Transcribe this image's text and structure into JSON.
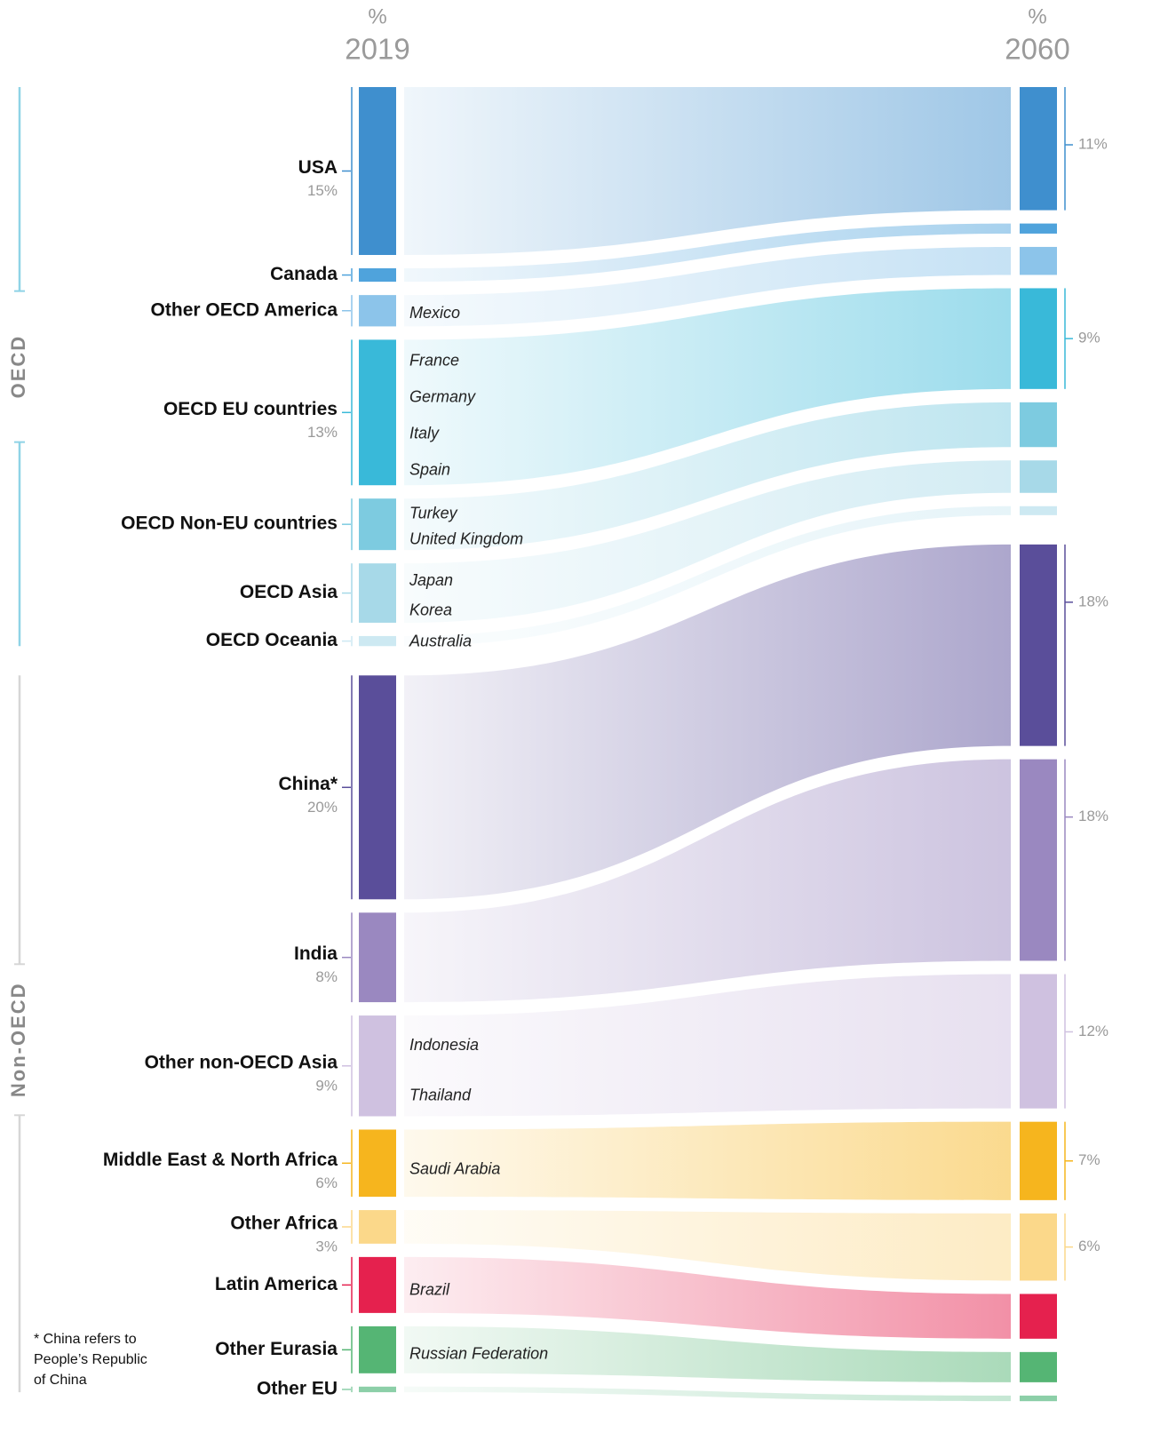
{
  "chart_data": {
    "type": "sankey",
    "left_header": {
      "unit": "%",
      "year": "2019"
    },
    "right_header": {
      "unit": "%",
      "year": "2060"
    },
    "groups": [
      {
        "name": "OECD",
        "color": "#8fd3e6",
        "regions": [
          {
            "name": "USA",
            "color": "#3f8fce",
            "value_2019": 15,
            "label_2019": "15%",
            "value_2060": 11,
            "label_2060": "11%",
            "countries": []
          },
          {
            "name": "Canada",
            "color": "#4fa3dc",
            "value_2019": 1.2,
            "value_2060": 0.9,
            "countries": []
          },
          {
            "name": "Other OECD America",
            "color": "#8cc4ea",
            "value_2019": 2.8,
            "value_2060": 2.5,
            "countries": [
              "Mexico"
            ]
          },
          {
            "name": "OECD EU countries",
            "color": "#39b9d9",
            "value_2019": 13,
            "label_2019": "13%",
            "value_2060": 9,
            "label_2060": "9%",
            "countries": [
              "France",
              "Germany",
              "Italy",
              "Spain"
            ]
          },
          {
            "name": "OECD Non-EU countries",
            "color": "#7dcbe0",
            "value_2019": 4.6,
            "value_2060": 4,
            "countries": [
              "Turkey",
              "United Kingdom"
            ]
          },
          {
            "name": "OECD Asia",
            "color": "#a7d9e8",
            "value_2019": 5.3,
            "value_2060": 2.9,
            "countries": [
              "Japan",
              "Korea"
            ]
          },
          {
            "name": "OECD Oceania",
            "color": "#cde9f2",
            "value_2019": 0.9,
            "value_2060": 0.8,
            "countries": [
              "Australia"
            ]
          }
        ]
      },
      {
        "name": "Non-OECD",
        "color": "#d6d6d6",
        "regions": [
          {
            "name": "China*",
            "color": "#5a4e9a",
            "value_2019": 20,
            "label_2019": "20%",
            "value_2060": 18,
            "label_2060": "18%",
            "countries": []
          },
          {
            "name": "India",
            "color": "#9a88c0",
            "value_2019": 8,
            "label_2019": "8%",
            "value_2060": 18,
            "label_2060": "18%",
            "countries": []
          },
          {
            "name": "Other non-OECD Asia",
            "color": "#cfc1e0",
            "value_2019": 9,
            "label_2019": "9%",
            "value_2060": 12,
            "label_2060": "12%",
            "countries": [
              "Indonesia",
              "Thailand"
            ]
          },
          {
            "name": "Middle East & North Africa",
            "color": "#f6b51e",
            "value_2019": 6,
            "label_2019": "6%",
            "value_2060": 7,
            "label_2060": "7%",
            "countries": [
              "Saudi Arabia"
            ]
          },
          {
            "name": "Other Africa",
            "color": "#fbd88a",
            "value_2019": 3,
            "label_2019": "3%",
            "value_2060": 6,
            "label_2060": "6%",
            "countries": []
          },
          {
            "name": "Latin America",
            "color": "#e5214e",
            "value_2019": 5,
            "value_2060": 4,
            "countries": [
              "Brazil"
            ]
          },
          {
            "name": "Other Eurasia",
            "color": "#55b574",
            "value_2019": 4.2,
            "value_2060": 2.7,
            "countries": [
              "Russian Federation"
            ]
          },
          {
            "name": "Other EU",
            "color": "#8ccfa8",
            "value_2019": 0.5,
            "value_2060": 0.5,
            "countries": []
          }
        ]
      }
    ],
    "footnote": [
      "* China refers to",
      "People’s Republic",
      "of China"
    ]
  }
}
